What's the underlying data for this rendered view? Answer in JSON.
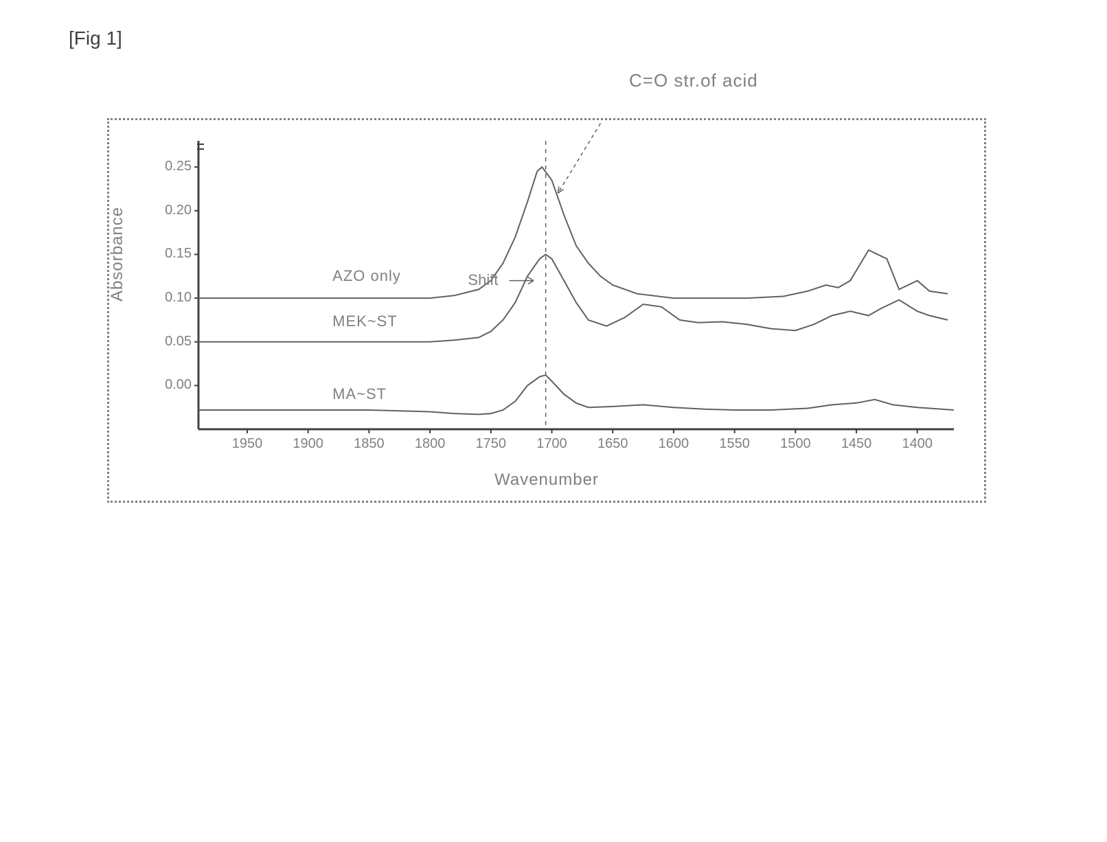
{
  "figure_label": "[Fig 1]",
  "annotation": "C=O str.of acid",
  "chart": {
    "type": "line",
    "xlabel": "Wavenumber",
    "ylabel": "Absorbance",
    "x_reversed": true,
    "xlim": [
      1370,
      1990
    ],
    "ylim": [
      -0.05,
      0.28
    ],
    "xtick_labels": [
      "1950",
      "1900",
      "1850",
      "1800",
      "1750",
      "1700",
      "1650",
      "1600",
      "1550",
      "1500",
      "1450",
      "1400"
    ],
    "xtick_values": [
      1950,
      1900,
      1850,
      1800,
      1750,
      1700,
      1650,
      1600,
      1550,
      1500,
      1450,
      1400
    ],
    "ytick_labels": [
      "0.00",
      "0.05",
      "0.10",
      "0.15",
      "0.20",
      "0.25"
    ],
    "ytick_values": [
      0.0,
      0.05,
      0.1,
      0.15,
      0.2,
      0.25
    ],
    "vertical_marker_x": 1705,
    "line_color": "#606060",
    "line_width": 2,
    "axis_color": "#404040",
    "axis_width": 3,
    "tick_color": "#808080",
    "background_color": "#ffffff",
    "border_color": "#808080",
    "annotation_arrow": {
      "from": [
        1660,
        0.3
      ],
      "to": [
        1695,
        0.22
      ]
    },
    "shift_label": "Shift",
    "shift_arrow": {
      "from": [
        1735,
        0.12
      ],
      "to": [
        1715,
        0.12
      ]
    },
    "series": [
      {
        "name": "AZO only",
        "label_pos_x": 1880,
        "label_pos_y": 0.115,
        "x": [
          1990,
          1950,
          1900,
          1850,
          1800,
          1780,
          1760,
          1750,
          1740,
          1730,
          1720,
          1712,
          1708,
          1700,
          1690,
          1680,
          1670,
          1660,
          1650,
          1630,
          1600,
          1570,
          1540,
          1510,
          1490,
          1475,
          1465,
          1455,
          1440,
          1425,
          1415,
          1400,
          1390,
          1375
        ],
        "y": [
          0.1,
          0.1,
          0.1,
          0.1,
          0.1,
          0.103,
          0.11,
          0.12,
          0.14,
          0.17,
          0.21,
          0.245,
          0.25,
          0.235,
          0.195,
          0.16,
          0.14,
          0.125,
          0.115,
          0.105,
          0.1,
          0.1,
          0.1,
          0.102,
          0.108,
          0.115,
          0.112,
          0.12,
          0.155,
          0.145,
          0.11,
          0.12,
          0.108,
          0.105
        ]
      },
      {
        "name": "MEK~ST",
        "label_pos_x": 1880,
        "label_pos_y": 0.063,
        "x": [
          1990,
          1950,
          1900,
          1850,
          1800,
          1780,
          1760,
          1750,
          1740,
          1730,
          1720,
          1710,
          1705,
          1700,
          1690,
          1680,
          1670,
          1655,
          1640,
          1625,
          1610,
          1595,
          1580,
          1560,
          1540,
          1520,
          1500,
          1485,
          1470,
          1455,
          1440,
          1430,
          1415,
          1400,
          1390,
          1375
        ],
        "y": [
          0.05,
          0.05,
          0.05,
          0.05,
          0.05,
          0.052,
          0.055,
          0.062,
          0.075,
          0.095,
          0.125,
          0.145,
          0.15,
          0.145,
          0.12,
          0.095,
          0.075,
          0.068,
          0.078,
          0.093,
          0.09,
          0.075,
          0.072,
          0.073,
          0.07,
          0.065,
          0.063,
          0.07,
          0.08,
          0.085,
          0.08,
          0.088,
          0.098,
          0.085,
          0.08,
          0.075
        ]
      },
      {
        "name": "MA~ST",
        "label_pos_x": 1880,
        "label_pos_y": -0.02,
        "x": [
          1990,
          1950,
          1900,
          1850,
          1800,
          1780,
          1760,
          1750,
          1740,
          1730,
          1720,
          1710,
          1705,
          1700,
          1690,
          1680,
          1670,
          1650,
          1625,
          1600,
          1575,
          1550,
          1520,
          1490,
          1470,
          1450,
          1435,
          1420,
          1400,
          1380,
          1370
        ],
        "y": [
          -0.028,
          -0.028,
          -0.028,
          -0.028,
          -0.03,
          -0.032,
          -0.033,
          -0.032,
          -0.028,
          -0.018,
          0.0,
          0.01,
          0.012,
          0.005,
          -0.01,
          -0.02,
          -0.025,
          -0.024,
          -0.022,
          -0.025,
          -0.027,
          -0.028,
          -0.028,
          -0.026,
          -0.022,
          -0.02,
          -0.016,
          -0.022,
          -0.025,
          -0.027,
          -0.028
        ]
      }
    ]
  }
}
